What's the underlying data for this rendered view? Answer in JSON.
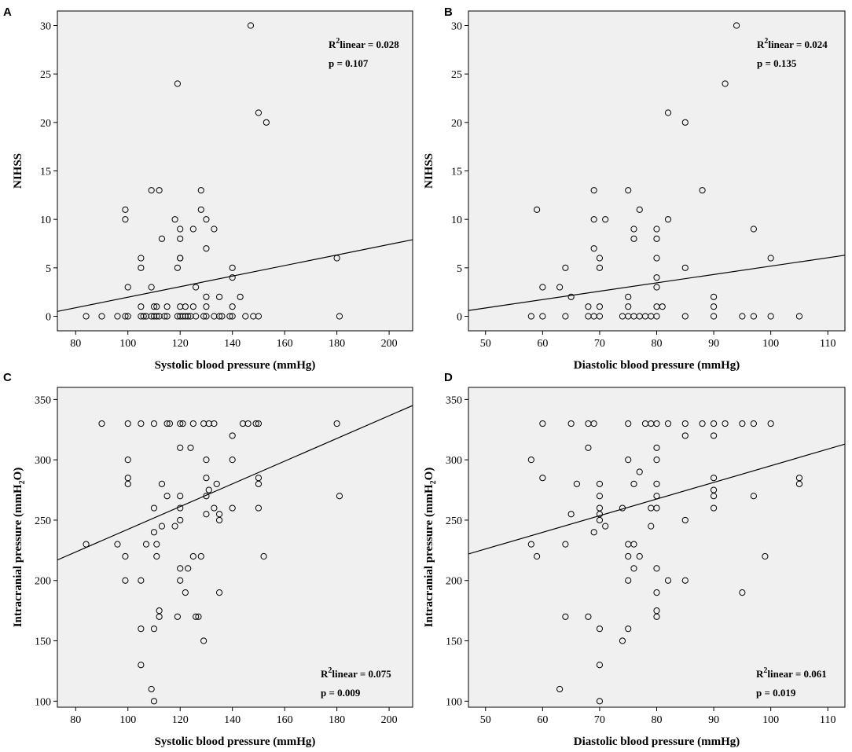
{
  "chart_data": [
    {
      "panel": "A",
      "type": "scatter",
      "xlabel": "Systolic blood pressure (mmHg)",
      "ylabel": "NIHSS",
      "xlim": [
        73,
        209
      ],
      "ylim": [
        -1.5,
        31.5
      ],
      "xticks": [
        80,
        100,
        120,
        140,
        160,
        180,
        200
      ],
      "yticks": [
        0,
        5,
        10,
        15,
        20,
        25,
        30
      ],
      "fit_line": {
        "x": [
          73,
          209
        ],
        "y": [
          0.5,
          7.9
        ]
      },
      "annotation": {
        "r2_prefix": "R",
        "r2_sup": "2",
        "r2_text": "linear = 0.028",
        "p_text": "p = 0.107"
      },
      "points": [
        [
          84,
          0
        ],
        [
          90,
          0
        ],
        [
          96,
          0
        ],
        [
          99,
          0
        ],
        [
          100,
          0
        ],
        [
          105,
          0
        ],
        [
          106,
          0
        ],
        [
          107,
          0
        ],
        [
          109,
          0
        ],
        [
          110,
          0
        ],
        [
          111,
          0
        ],
        [
          112,
          0
        ],
        [
          114,
          0
        ],
        [
          115,
          0
        ],
        [
          119,
          0
        ],
        [
          120,
          0
        ],
        [
          121,
          0
        ],
        [
          122,
          0
        ],
        [
          123,
          0
        ],
        [
          124,
          0
        ],
        [
          126,
          0
        ],
        [
          129,
          0
        ],
        [
          130,
          0
        ],
        [
          133,
          0
        ],
        [
          135,
          0
        ],
        [
          136,
          0
        ],
        [
          139,
          0
        ],
        [
          140,
          0
        ],
        [
          145,
          0
        ],
        [
          148,
          0
        ],
        [
          150,
          0
        ],
        [
          181,
          0
        ],
        [
          105,
          1
        ],
        [
          110,
          1
        ],
        [
          111,
          1
        ],
        [
          115,
          1
        ],
        [
          120,
          1
        ],
        [
          122,
          1
        ],
        [
          125,
          1
        ],
        [
          130,
          1
        ],
        [
          140,
          1
        ],
        [
          130,
          2
        ],
        [
          135,
          2
        ],
        [
          143,
          2
        ],
        [
          126,
          3
        ],
        [
          109,
          3
        ],
        [
          100,
          3
        ],
        [
          140,
          4
        ],
        [
          105,
          5
        ],
        [
          119,
          5
        ],
        [
          140,
          5
        ],
        [
          105,
          6
        ],
        [
          120,
          6
        ],
        [
          120,
          6
        ],
        [
          180,
          6
        ],
        [
          130,
          7
        ],
        [
          113,
          8
        ],
        [
          120,
          8
        ],
        [
          120,
          9
        ],
        [
          125,
          9
        ],
        [
          133,
          9
        ],
        [
          99,
          10
        ],
        [
          118,
          10
        ],
        [
          130,
          10
        ],
        [
          99,
          11
        ],
        [
          128,
          11
        ],
        [
          109,
          13
        ],
        [
          112,
          13
        ],
        [
          128,
          13
        ],
        [
          153,
          20
        ],
        [
          150,
          21
        ],
        [
          119,
          24
        ],
        [
          147,
          30
        ]
      ]
    },
    {
      "panel": "B",
      "type": "scatter",
      "xlabel": "Diastolic blood pressure (mmHg)",
      "ylabel": "NIHSS",
      "xlim": [
        47,
        113
      ],
      "ylim": [
        -1.5,
        31.5
      ],
      "xticks": [
        50,
        60,
        70,
        80,
        90,
        100,
        110
      ],
      "yticks": [
        0,
        5,
        10,
        15,
        20,
        25,
        30
      ],
      "fit_line": {
        "x": [
          47,
          113
        ],
        "y": [
          0.6,
          6.3
        ]
      },
      "annotation": {
        "r2_prefix": "R",
        "r2_sup": "2",
        "r2_text": "linear = 0.024",
        "p_text": "p = 0.135"
      },
      "points": [
        [
          58,
          0
        ],
        [
          60,
          0
        ],
        [
          64,
          0
        ],
        [
          68,
          0
        ],
        [
          69,
          0
        ],
        [
          70,
          0
        ],
        [
          74,
          0
        ],
        [
          75,
          0
        ],
        [
          76,
          0
        ],
        [
          77,
          0
        ],
        [
          78,
          0
        ],
        [
          79,
          0
        ],
        [
          80,
          0
        ],
        [
          85,
          0
        ],
        [
          90,
          0
        ],
        [
          95,
          0
        ],
        [
          97,
          0
        ],
        [
          100,
          0
        ],
        [
          105,
          0
        ],
        [
          68,
          1
        ],
        [
          70,
          1
        ],
        [
          75,
          1
        ],
        [
          80,
          1
        ],
        [
          81,
          1
        ],
        [
          90,
          1
        ],
        [
          65,
          2
        ],
        [
          75,
          2
        ],
        [
          90,
          2
        ],
        [
          60,
          3
        ],
        [
          63,
          3
        ],
        [
          80,
          3
        ],
        [
          80,
          4
        ],
        [
          64,
          5
        ],
        [
          70,
          5
        ],
        [
          85,
          5
        ],
        [
          70,
          6
        ],
        [
          80,
          6
        ],
        [
          100,
          6
        ],
        [
          69,
          7
        ],
        [
          76,
          8
        ],
        [
          80,
          8
        ],
        [
          76,
          9
        ],
        [
          80,
          9
        ],
        [
          97,
          9
        ],
        [
          69,
          10
        ],
        [
          71,
          10
        ],
        [
          82,
          10
        ],
        [
          59,
          11
        ],
        [
          77,
          11
        ],
        [
          69,
          13
        ],
        [
          75,
          13
        ],
        [
          88,
          13
        ],
        [
          85,
          20
        ],
        [
          82,
          21
        ],
        [
          92,
          24
        ],
        [
          94,
          30
        ]
      ]
    },
    {
      "panel": "C",
      "type": "scatter",
      "xlabel": "Systolic blood pressure (mmHg)",
      "ylabel_prefix": "Intracranial pressure (mmH",
      "ylabel_sub": "2",
      "ylabel_suffix": "O)",
      "xlim": [
        73,
        209
      ],
      "ylim": [
        95,
        360
      ],
      "xticks": [
        80,
        100,
        120,
        140,
        160,
        180,
        200
      ],
      "yticks": [
        100,
        150,
        200,
        250,
        300,
        350
      ],
      "fit_line": {
        "x": [
          73,
          209
        ],
        "y": [
          217,
          345
        ]
      },
      "annotation": {
        "r2_prefix": "R",
        "r2_sup": "2",
        "r2_text": "linear = 0.075",
        "p_text": "p = 0.009"
      },
      "points": [
        [
          90,
          330
        ],
        [
          100,
          330
        ],
        [
          105,
          330
        ],
        [
          110,
          330
        ],
        [
          115,
          330
        ],
        [
          116,
          330
        ],
        [
          120,
          330
        ],
        [
          121,
          330
        ],
        [
          125,
          330
        ],
        [
          129,
          330
        ],
        [
          131,
          330
        ],
        [
          133,
          330
        ],
        [
          144,
          330
        ],
        [
          146,
          330
        ],
        [
          149,
          330
        ],
        [
          150,
          330
        ],
        [
          180,
          330
        ],
        [
          140,
          320
        ],
        [
          120,
          310
        ],
        [
          124,
          310
        ],
        [
          100,
          300
        ],
        [
          130,
          300
        ],
        [
          140,
          300
        ],
        [
          100,
          285
        ],
        [
          100,
          280
        ],
        [
          113,
          280
        ],
        [
          130,
          285
        ],
        [
          134,
          280
        ],
        [
          150,
          285
        ],
        [
          150,
          280
        ],
        [
          115,
          270
        ],
        [
          120,
          270
        ],
        [
          131,
          275
        ],
        [
          130,
          270
        ],
        [
          181,
          270
        ],
        [
          110,
          260
        ],
        [
          120,
          260
        ],
        [
          133,
          260
        ],
        [
          140,
          260
        ],
        [
          150,
          260
        ],
        [
          113,
          245
        ],
        [
          118,
          245
        ],
        [
          120,
          250
        ],
        [
          135,
          255
        ],
        [
          130,
          255
        ],
        [
          135,
          250
        ],
        [
          84,
          230
        ],
        [
          96,
          230
        ],
        [
          107,
          230
        ],
        [
          111,
          230
        ],
        [
          110,
          240
        ],
        [
          99,
          220
        ],
        [
          111,
          220
        ],
        [
          125,
          220
        ],
        [
          128,
          220
        ],
        [
          152,
          220
        ],
        [
          120,
          210
        ],
        [
          123,
          210
        ],
        [
          99,
          200
        ],
        [
          105,
          200
        ],
        [
          120,
          200
        ],
        [
          122,
          190
        ],
        [
          135,
          190
        ],
        [
          112,
          175
        ],
        [
          112,
          170
        ],
        [
          119,
          170
        ],
        [
          126,
          170
        ],
        [
          127,
          170
        ],
        [
          105,
          160
        ],
        [
          110,
          160
        ],
        [
          129,
          150
        ],
        [
          105,
          130
        ],
        [
          109,
          110
        ],
        [
          110,
          100
        ]
      ]
    },
    {
      "panel": "D",
      "type": "scatter",
      "xlabel": "Diastolic blood pressure (mmHg)",
      "ylabel_prefix": "Intracranial pressure (mmH",
      "ylabel_sub": "2",
      "ylabel_suffix": "O)",
      "xlim": [
        47,
        113
      ],
      "ylim": [
        95,
        360
      ],
      "xticks": [
        50,
        60,
        70,
        80,
        90,
        100,
        110
      ],
      "yticks": [
        100,
        150,
        200,
        250,
        300,
        350
      ],
      "fit_line": {
        "x": [
          47,
          113
        ],
        "y": [
          222,
          313
        ]
      },
      "annotation": {
        "r2_prefix": "R",
        "r2_sup": "2",
        "r2_text": "linear = 0.061",
        "p_text": "p = 0.019"
      },
      "points": [
        [
          60,
          330
        ],
        [
          65,
          330
        ],
        [
          68,
          330
        ],
        [
          69,
          330
        ],
        [
          75,
          330
        ],
        [
          78,
          330
        ],
        [
          79,
          330
        ],
        [
          80,
          330
        ],
        [
          82,
          330
        ],
        [
          85,
          330
        ],
        [
          88,
          330
        ],
        [
          90,
          330
        ],
        [
          92,
          330
        ],
        [
          95,
          330
        ],
        [
          97,
          330
        ],
        [
          100,
          330
        ],
        [
          85,
          320
        ],
        [
          90,
          320
        ],
        [
          68,
          310
        ],
        [
          80,
          310
        ],
        [
          58,
          300
        ],
        [
          75,
          300
        ],
        [
          80,
          300
        ],
        [
          60,
          285
        ],
        [
          66,
          280
        ],
        [
          70,
          280
        ],
        [
          76,
          280
        ],
        [
          80,
          280
        ],
        [
          90,
          285
        ],
        [
          105,
          285
        ],
        [
          105,
          280
        ],
        [
          70,
          270
        ],
        [
          77,
          290
        ],
        [
          80,
          270
        ],
        [
          90,
          275
        ],
        [
          90,
          270
        ],
        [
          97,
          270
        ],
        [
          70,
          260
        ],
        [
          74,
          260
        ],
        [
          79,
          260
        ],
        [
          80,
          260
        ],
        [
          90,
          260
        ],
        [
          65,
          255
        ],
        [
          70,
          255
        ],
        [
          70,
          250
        ],
        [
          71,
          245
        ],
        [
          79,
          245
        ],
        [
          85,
          250
        ],
        [
          58,
          230
        ],
        [
          64,
          230
        ],
        [
          75,
          230
        ],
        [
          76,
          230
        ],
        [
          69,
          240
        ],
        [
          59,
          220
        ],
        [
          75,
          220
        ],
        [
          77,
          220
        ],
        [
          99,
          220
        ],
        [
          76,
          210
        ],
        [
          80,
          210
        ],
        [
          75,
          200
        ],
        [
          82,
          200
        ],
        [
          85,
          200
        ],
        [
          80,
          190
        ],
        [
          95,
          190
        ],
        [
          64,
          170
        ],
        [
          68,
          170
        ],
        [
          80,
          175
        ],
        [
          80,
          170
        ],
        [
          70,
          160
        ],
        [
          75,
          160
        ],
        [
          74,
          150
        ],
        [
          70,
          130
        ],
        [
          63,
          110
        ],
        [
          70,
          100
        ]
      ]
    }
  ]
}
